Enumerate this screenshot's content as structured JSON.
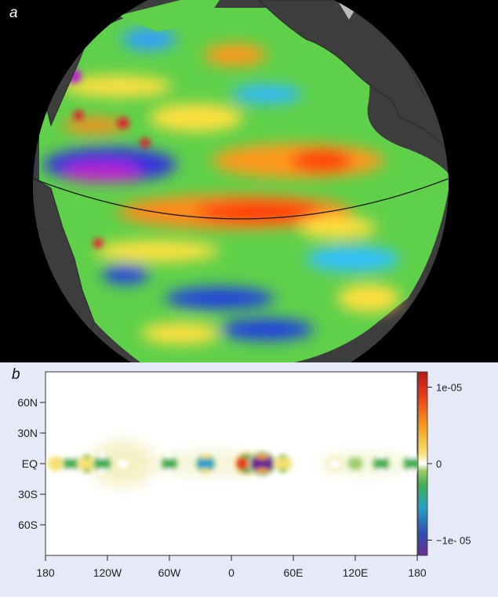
{
  "panel_a": {
    "label": "a",
    "colors": {
      "background": "#000000",
      "land": "#3d3d3d",
      "equator": "#1a1a1a"
    }
  },
  "panel_b": {
    "label": "b",
    "x_ticks": [
      "180",
      "120W",
      "60W",
      "0",
      "60E",
      "120E",
      "180"
    ],
    "y_ticks": [
      "60N",
      "30N",
      "EQ",
      "30S",
      "60S"
    ],
    "colorbar_ticks": [
      "1e-05",
      "0",
      "−1e- 05"
    ],
    "colorbar_colors": [
      "#6b2c91",
      "#2f4fb0",
      "#2aa0c8",
      "#3fae52",
      "#9ccc65",
      "#ffffff",
      "#f5e070",
      "#f6a020",
      "#e8401c",
      "#b51a1a"
    ]
  },
  "chart_data": {
    "type": "heatmap",
    "title": "",
    "xlabel": "",
    "ylabel": "",
    "x_ticks": [
      "180",
      "120W",
      "60W",
      "0",
      "60E",
      "120E",
      "180"
    ],
    "y_ticks": [
      "60N",
      "30N",
      "EQ",
      "30S",
      "60S"
    ],
    "xlim": [
      -180,
      180
    ],
    "ylim": [
      -90,
      90
    ],
    "colorbar": {
      "min": -1.2e-05,
      "max": 1.2e-05,
      "ticks": [
        1e-05,
        0,
        -1e-05
      ]
    },
    "features": [
      {
        "lon": -170,
        "lat": 0,
        "value": 3e-06
      },
      {
        "lon": -155,
        "lat": 0,
        "value": -4e-06
      },
      {
        "lon": -140,
        "lat": 0,
        "value": 4e-06
      },
      {
        "lon": -125,
        "lat": 0,
        "value": -5e-06
      },
      {
        "lon": -105,
        "lat": 0,
        "value": 2e-06
      },
      {
        "lon": -60,
        "lat": 0,
        "value": -4e-06
      },
      {
        "lon": -25,
        "lat": 0,
        "value": -6e-06
      },
      {
        "lon": 15,
        "lat": 0,
        "value": 1e-05
      },
      {
        "lon": 30,
        "lat": 0,
        "value": -1.1e-05
      },
      {
        "lon": 50,
        "lat": 0,
        "value": 4e-06
      },
      {
        "lon": 100,
        "lat": 0,
        "value": 2e-06
      },
      {
        "lon": 120,
        "lat": 0,
        "value": -2e-06
      },
      {
        "lon": 145,
        "lat": 0,
        "value": -4e-06
      },
      {
        "lon": 175,
        "lat": 0,
        "value": -5e-06
      }
    ]
  }
}
